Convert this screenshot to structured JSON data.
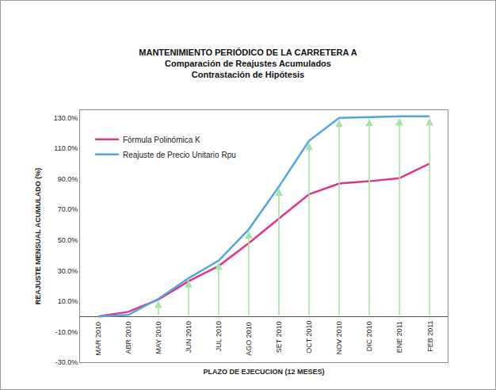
{
  "chart_data": {
    "type": "line",
    "title": "MANTENIMIENTO PERIÓDICO DE LA CARRETERA A",
    "subtitle": [
      "Comparación de Reajustes Acumulados",
      "Contrastación de Hipótesis"
    ],
    "x_label": "PLAZO DE EJECUCION (12 MESES)",
    "y_label": "REAJUSTE MENSUAL ACUMULADO (%)",
    "categories": [
      "MAR 2010",
      "ABR 2010",
      "MAY 2010",
      "JUN 2010",
      "JUL 2010",
      "AGO 2010",
      "SET 2010",
      "OCT 2010",
      "NOV 2010",
      "DIC 2010",
      "ENE 2011",
      "FEB 2011"
    ],
    "series": [
      {
        "name": "Fórmula Polinómica K",
        "color": "#e0338a",
        "values": [
          0,
          3,
          11,
          23,
          33,
          48,
          64,
          80,
          87,
          88.5,
          90.5,
          100
        ]
      },
      {
        "name": "Reajuste de Precio Unitario Rpu",
        "color": "#52a6dd",
        "values": [
          0,
          1,
          11.5,
          25,
          36.5,
          57,
          85,
          115,
          130,
          130.5,
          131,
          131
        ]
      }
    ],
    "ylim": [
      -30,
      135
    ],
    "yticks": [
      {
        "value": -30,
        "label": "-30.0%"
      },
      {
        "value": -10,
        "label": "-10.0%"
      },
      {
        "value": 10,
        "label": "10.0%"
      },
      {
        "value": 30,
        "label": "30.0%"
      },
      {
        "value": 50,
        "label": "50.0%"
      },
      {
        "value": 70,
        "label": "70.0%"
      },
      {
        "value": 90,
        "label": "90.0%"
      },
      {
        "value": 110,
        "label": "110.0%"
      },
      {
        "value": 130,
        "label": "130.0%"
      }
    ],
    "grid": false,
    "legend": "upper left"
  }
}
